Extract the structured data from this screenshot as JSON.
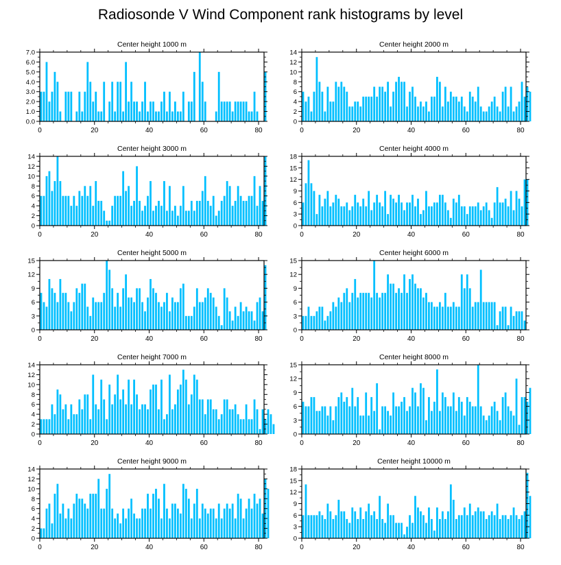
{
  "title": "Radiosonde V Wind Component rank histograms by level",
  "chart_data": [
    {
      "type": "bar",
      "title": "Center height 1000 m",
      "ylim": [
        0,
        7
      ],
      "yticks": [
        0,
        1,
        2,
        3,
        4,
        5,
        6,
        7
      ],
      "ytick_labels": [
        "0.0",
        "1.0",
        "2.0",
        "3.0",
        "4.0",
        "5.0",
        "6.0",
        "7.0"
      ],
      "xlim": [
        0,
        82
      ],
      "xticks": [
        0,
        20,
        40,
        60,
        80
      ],
      "values": [
        3,
        3,
        6,
        2,
        3,
        5,
        4,
        1,
        0,
        3,
        3,
        3,
        0,
        1,
        3,
        1,
        3,
        6,
        4,
        2,
        3,
        1,
        1,
        4,
        0,
        2,
        4,
        1,
        4,
        4,
        1,
        6,
        2,
        4,
        2,
        2,
        1,
        2,
        4,
        1,
        2,
        2,
        1,
        1,
        2,
        3,
        1,
        3,
        1,
        2,
        1,
        1,
        3,
        0,
        2,
        2,
        5,
        0,
        7,
        4,
        2,
        0,
        0,
        0,
        1,
        5,
        2,
        2,
        2,
        2,
        1,
        2,
        2,
        2,
        2,
        2,
        1,
        1,
        3,
        1,
        0,
        0,
        5
      ]
    },
    {
      "type": "bar",
      "title": "Center height 2000 m",
      "ylim": [
        0,
        14
      ],
      "yticks": [
        0,
        2,
        4,
        6,
        8,
        10,
        12,
        14
      ],
      "ytick_labels": [
        "0",
        "2",
        "4",
        "6",
        "8",
        "10",
        "12",
        "14"
      ],
      "xlim": [
        0,
        82
      ],
      "xticks": [
        0,
        20,
        40,
        60,
        80
      ],
      "values": [
        6,
        4,
        5,
        2,
        6,
        13,
        8,
        6,
        2,
        7,
        4,
        4,
        8,
        7,
        8,
        7,
        6,
        3,
        3,
        4,
        4,
        3,
        5,
        5,
        5,
        5,
        7,
        5,
        7,
        7,
        6,
        8,
        3,
        6,
        8,
        9,
        8,
        8,
        3,
        6,
        7,
        5,
        3,
        4,
        3,
        4,
        2,
        5,
        5,
        9,
        8,
        3,
        7,
        4,
        6,
        5,
        5,
        4,
        5,
        3,
        2,
        6,
        5,
        4,
        7,
        3,
        2,
        2,
        3,
        4,
        5,
        3,
        2,
        6,
        7,
        3,
        7,
        2,
        3,
        4,
        8,
        5,
        7,
        6
      ]
    },
    {
      "type": "bar",
      "title": "Center height 3000 m",
      "ylim": [
        0,
        14
      ],
      "yticks": [
        0,
        2,
        4,
        6,
        8,
        10,
        12,
        14
      ],
      "ytick_labels": [
        "0",
        "2",
        "4",
        "6",
        "8",
        "10",
        "12",
        "14"
      ],
      "xlim": [
        0,
        82
      ],
      "xticks": [
        0,
        20,
        40,
        60,
        80
      ],
      "values": [
        6,
        6,
        10,
        11,
        7,
        9,
        14,
        9,
        6,
        6,
        6,
        4,
        6,
        4,
        7,
        6,
        8,
        6,
        8,
        4,
        9,
        5,
        5,
        3,
        1,
        1,
        4,
        6,
        6,
        6,
        11,
        7,
        8,
        4,
        5,
        12,
        5,
        3,
        4,
        6,
        9,
        3,
        4,
        5,
        4,
        9,
        3,
        8,
        3,
        4,
        2,
        4,
        8,
        3,
        3,
        5,
        3,
        5,
        5,
        7,
        10,
        5,
        4,
        6,
        2,
        3,
        5,
        6,
        9,
        8,
        4,
        5,
        8,
        6,
        5,
        5,
        6,
        6,
        10,
        4,
        8,
        5,
        14
      ]
    },
    {
      "type": "bar",
      "title": "Center height 4000 m",
      "ylim": [
        0,
        18
      ],
      "yticks": [
        0,
        3,
        6,
        9,
        12,
        15,
        18
      ],
      "ytick_labels": [
        "0",
        "3",
        "6",
        "9",
        "12",
        "15",
        "18"
      ],
      "xlim": [
        0,
        82
      ],
      "xticks": [
        0,
        20,
        40,
        60,
        80
      ],
      "values": [
        6,
        11,
        17,
        11,
        9,
        3,
        8,
        5,
        7,
        9,
        5,
        6,
        8,
        7,
        5,
        5,
        6,
        4,
        5,
        8,
        6,
        5,
        7,
        5,
        9,
        4,
        6,
        8,
        6,
        5,
        9,
        3,
        8,
        7,
        6,
        8,
        6,
        4,
        6,
        6,
        8,
        5,
        7,
        3,
        4,
        9,
        5,
        5,
        6,
        6,
        8,
        8,
        6,
        4,
        2,
        7,
        6,
        8,
        5,
        5,
        3,
        5,
        5,
        5,
        6,
        4,
        5,
        6,
        4,
        2,
        6,
        10,
        6,
        6,
        7,
        5,
        9,
        4,
        9,
        7,
        5,
        12,
        12
      ]
    },
    {
      "type": "bar",
      "title": "Center height 5000 m",
      "ylim": [
        0,
        15
      ],
      "yticks": [
        0,
        3,
        6,
        9,
        12,
        15
      ],
      "ytick_labels": [
        "0",
        "3",
        "6",
        "9",
        "12",
        "15"
      ],
      "xlim": [
        0,
        82
      ],
      "xticks": [
        0,
        20,
        40,
        60,
        80
      ],
      "values": [
        8,
        6,
        5,
        11,
        9,
        8,
        6,
        11,
        8,
        8,
        6,
        4,
        6,
        9,
        8,
        10,
        10,
        5,
        3,
        7,
        6,
        6,
        6,
        8,
        15,
        13,
        9,
        5,
        8,
        5,
        9,
        12,
        7,
        7,
        6,
        9,
        9,
        6,
        4,
        7,
        11,
        9,
        8,
        6,
        5,
        6,
        8,
        4,
        7,
        6,
        6,
        9,
        10,
        3,
        3,
        3,
        5,
        9,
        6,
        6,
        7,
        9,
        8,
        7,
        5,
        3,
        1,
        9,
        7,
        4,
        2,
        5,
        3,
        6,
        4,
        5,
        4,
        4,
        2,
        6,
        7,
        4,
        14
      ]
    },
    {
      "type": "bar",
      "title": "Center height 6000 m",
      "ylim": [
        0,
        15
      ],
      "yticks": [
        0,
        3,
        6,
        9,
        12,
        15
      ],
      "ytick_labels": [
        "0",
        "3",
        "6",
        "9",
        "12",
        "15"
      ],
      "xlim": [
        0,
        82
      ],
      "xticks": [
        0,
        20,
        40,
        60,
        80
      ],
      "values": [
        3,
        3,
        5,
        3,
        3,
        4,
        5,
        5,
        2,
        3,
        4,
        6,
        5,
        7,
        6,
        8,
        9,
        6,
        8,
        11,
        7,
        8,
        8,
        8,
        8,
        7,
        15,
        8,
        7,
        8,
        8,
        12,
        10,
        10,
        8,
        9,
        8,
        12,
        8,
        11,
        12,
        10,
        9,
        9,
        7,
        8,
        6,
        6,
        5,
        5,
        6,
        5,
        8,
        5,
        5,
        6,
        5,
        5,
        12,
        9,
        12,
        9,
        5,
        6,
        6,
        13,
        6,
        6,
        6,
        6,
        6,
        1,
        4,
        5,
        5,
        1,
        5,
        3,
        4,
        4,
        4,
        2
      ]
    },
    {
      "type": "bar",
      "title": "Center height 7000 m",
      "ylim": [
        0,
        14
      ],
      "yticks": [
        0,
        2,
        4,
        6,
        8,
        10,
        12,
        14
      ],
      "ytick_labels": [
        "0",
        "2",
        "4",
        "6",
        "8",
        "10",
        "12",
        "14"
      ],
      "xlim": [
        0,
        82
      ],
      "xticks": [
        0,
        20,
        40,
        60,
        80
      ],
      "values": [
        3,
        3,
        3,
        3,
        6,
        4,
        9,
        8,
        5,
        6,
        3,
        6,
        4,
        4,
        7,
        5,
        8,
        8,
        3,
        12,
        6,
        5,
        11,
        7,
        3,
        10,
        6,
        8,
        12,
        7,
        9,
        6,
        11,
        6,
        11,
        8,
        5,
        6,
        6,
        5,
        9,
        10,
        10,
        5,
        11,
        3,
        4,
        12,
        5,
        6,
        9,
        10,
        13,
        11,
        6,
        8,
        12,
        11,
        7,
        7,
        4,
        7,
        7,
        5,
        5,
        3,
        4,
        7,
        7,
        5,
        5,
        6,
        4,
        3,
        3,
        6,
        3,
        3,
        7,
        5,
        1,
        5,
        3,
        5,
        4,
        2
      ]
    },
    {
      "type": "bar",
      "title": "Center height 8000 m",
      "ylim": [
        0,
        15
      ],
      "yticks": [
        0,
        3,
        6,
        9,
        12,
        15
      ],
      "ytick_labels": [
        "0",
        "3",
        "6",
        "9",
        "12",
        "15"
      ],
      "xlim": [
        0,
        82
      ],
      "xticks": [
        0,
        20,
        40,
        60,
        80
      ],
      "values": [
        7,
        6,
        6,
        8,
        8,
        5,
        5,
        6,
        6,
        4,
        6,
        3,
        6,
        8,
        9,
        7,
        8,
        6,
        10,
        6,
        8,
        4,
        4,
        9,
        4,
        8,
        5,
        11,
        1,
        6,
        6,
        5,
        4,
        9,
        6,
        6,
        7,
        8,
        5,
        6,
        10,
        9,
        6,
        11,
        10,
        3,
        8,
        5,
        7,
        14,
        5,
        9,
        8,
        6,
        6,
        9,
        5,
        8,
        7,
        4,
        8,
        7,
        6,
        6,
        15,
        6,
        4,
        3,
        4,
        6,
        7,
        5,
        3,
        8,
        9,
        6,
        5,
        4,
        12,
        2,
        8,
        8,
        7,
        10
      ]
    },
    {
      "type": "bar",
      "title": "Center height 9000 m",
      "ylim": [
        0,
        14
      ],
      "yticks": [
        0,
        2,
        4,
        6,
        8,
        10,
        12,
        14
      ],
      "ytick_labels": [
        "0",
        "2",
        "4",
        "6",
        "8",
        "10",
        "12",
        "14"
      ],
      "xlim": [
        0,
        82
      ],
      "xticks": [
        0,
        20,
        40,
        60,
        80
      ],
      "values": [
        2,
        2,
        6,
        7,
        3,
        9,
        11,
        5,
        7,
        4,
        6,
        4,
        7,
        9,
        8,
        8,
        7,
        6,
        9,
        9,
        9,
        12,
        6,
        6,
        10,
        13,
        6,
        4,
        5,
        3,
        6,
        4,
        6,
        8,
        5,
        4,
        4,
        6,
        6,
        9,
        6,
        9,
        10,
        8,
        4,
        11,
        6,
        4,
        7,
        7,
        6,
        5,
        11,
        10,
        8,
        4,
        7,
        10,
        4,
        7,
        6,
        5,
        6,
        6,
        4,
        7,
        4,
        6,
        7,
        6,
        7,
        4,
        9,
        8,
        4,
        6,
        8,
        6,
        9,
        7,
        8,
        5,
        12,
        10
      ]
    },
    {
      "type": "bar",
      "title": "Center height 10000 m",
      "ylim": [
        0,
        18
      ],
      "yticks": [
        0,
        3,
        6,
        9,
        12,
        15,
        18
      ],
      "ytick_labels": [
        "0",
        "3",
        "6",
        "9",
        "12",
        "15",
        "18"
      ],
      "xlim": [
        0,
        82
      ],
      "xticks": [
        0,
        20,
        40,
        60,
        80
      ],
      "values": [
        6,
        14,
        6,
        6,
        6,
        6,
        7,
        6,
        5,
        9,
        7,
        5,
        6,
        10,
        7,
        7,
        5,
        4,
        8,
        7,
        5,
        8,
        5,
        7,
        9,
        6,
        7,
        5,
        11,
        5,
        4,
        9,
        6,
        6,
        4,
        4,
        4,
        1,
        3,
        6,
        4,
        11,
        8,
        7,
        6,
        4,
        8,
        5,
        2,
        8,
        5,
        7,
        5,
        7,
        14,
        10,
        5,
        6,
        6,
        8,
        6,
        9,
        6,
        7,
        8,
        7,
        7,
        5,
        6,
        7,
        6,
        9,
        5,
        6,
        6,
        5,
        6,
        8,
        6,
        5,
        6,
        7,
        17,
        11
      ]
    }
  ]
}
